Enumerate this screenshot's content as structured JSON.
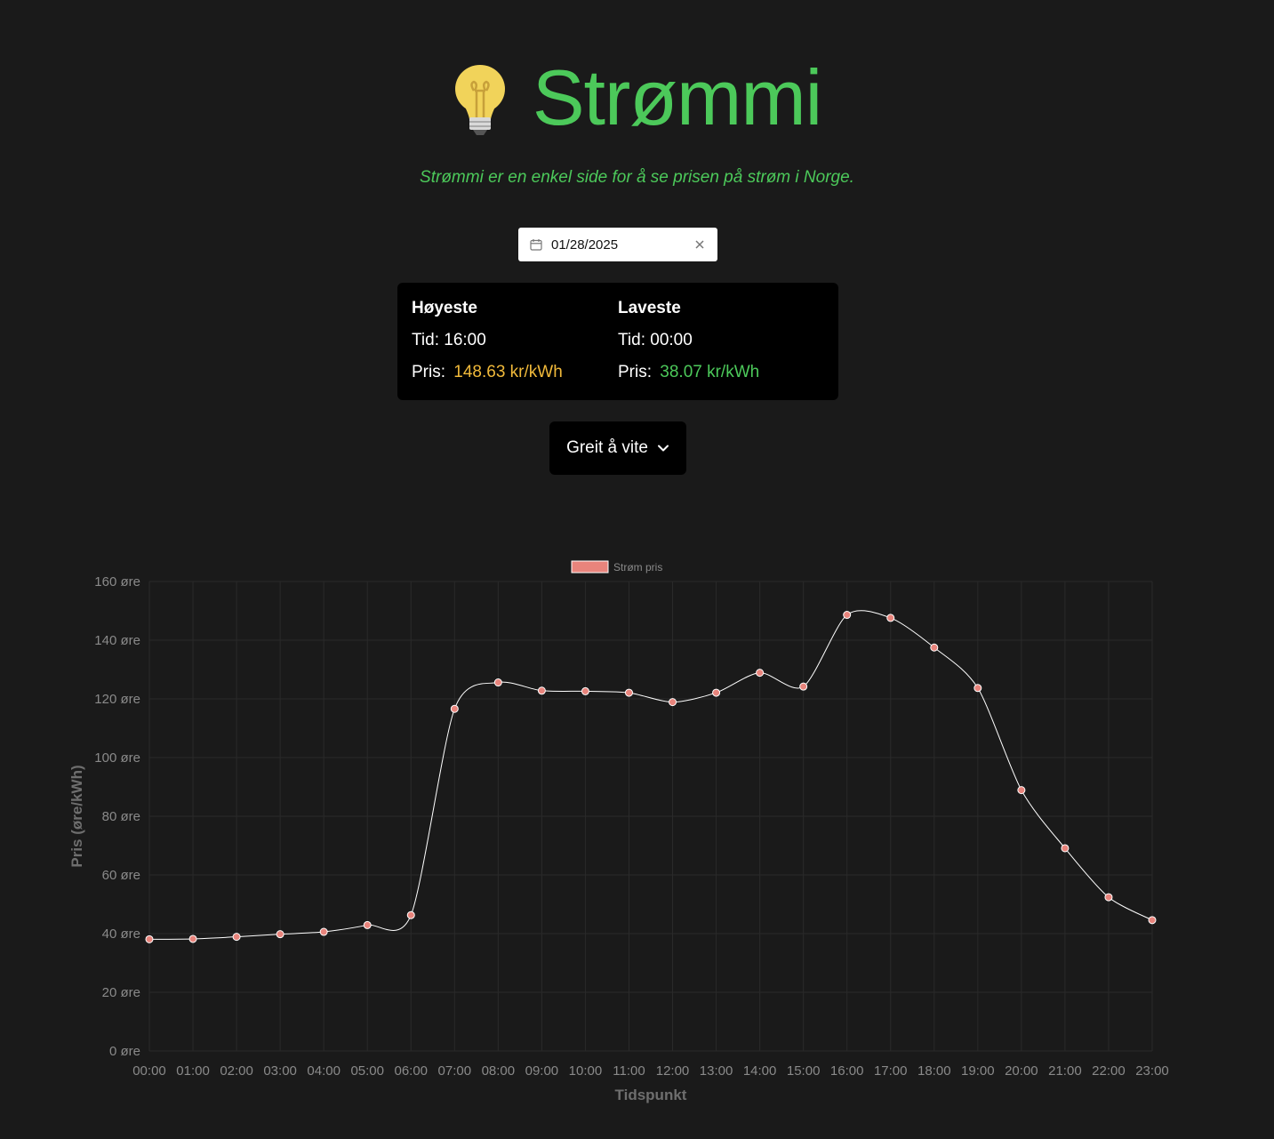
{
  "app": {
    "title": "Strømmi",
    "subtitle": "Strømmi er en enkel side for å se prisen på strøm i Norge.",
    "icon": "lightbulb-icon",
    "accent_color": "#4cc95a"
  },
  "date_picker": {
    "value": "01/28/2025",
    "icon": "calendar-icon",
    "clear_icon": "close-icon"
  },
  "stats": {
    "highest": {
      "heading": "Høyeste",
      "time_label": "Tid:",
      "time": "16:00",
      "price_label": "Pris:",
      "price": "148.63 kr/kWh",
      "color": "#f0b93a"
    },
    "lowest": {
      "heading": "Laveste",
      "time_label": "Tid:",
      "time": "00:00",
      "price_label": "Pris:",
      "price": "38.07 kr/kWh",
      "color": "#4cc95a"
    }
  },
  "dropdown": {
    "label": "Greit å vite",
    "icon": "chevron-down-icon"
  },
  "chart_data": {
    "type": "line",
    "xlabel": "Tidspunkt",
    "ylabel": "Pris (øre/kWh)",
    "ylim": [
      0,
      160
    ],
    "y_ticks": [
      "0 øre",
      "20 øre",
      "40 øre",
      "60 øre",
      "80 øre",
      "100 øre",
      "120 øre",
      "140 øre",
      "160 øre"
    ],
    "grid": true,
    "legend_position": "top-center",
    "categories": [
      "00:00",
      "01:00",
      "02:00",
      "03:00",
      "04:00",
      "05:00",
      "06:00",
      "07:00",
      "08:00",
      "09:00",
      "10:00",
      "11:00",
      "12:00",
      "13:00",
      "14:00",
      "15:00",
      "16:00",
      "17:00",
      "18:00",
      "19:00",
      "20:00",
      "21:00",
      "22:00",
      "23:00"
    ],
    "series": [
      {
        "name": "Strøm pris",
        "color": "#e8847c",
        "line_color": "#ffffff",
        "values": [
          38.07,
          38.2,
          38.9,
          39.8,
          40.6,
          42.9,
          46.3,
          116.6,
          125.6,
          122.8,
          122.6,
          122.1,
          118.9,
          122.1,
          128.9,
          124.2,
          148.63,
          147.6,
          137.5,
          123.7,
          88.9,
          69.1,
          52.4,
          44.6
        ]
      }
    ]
  }
}
